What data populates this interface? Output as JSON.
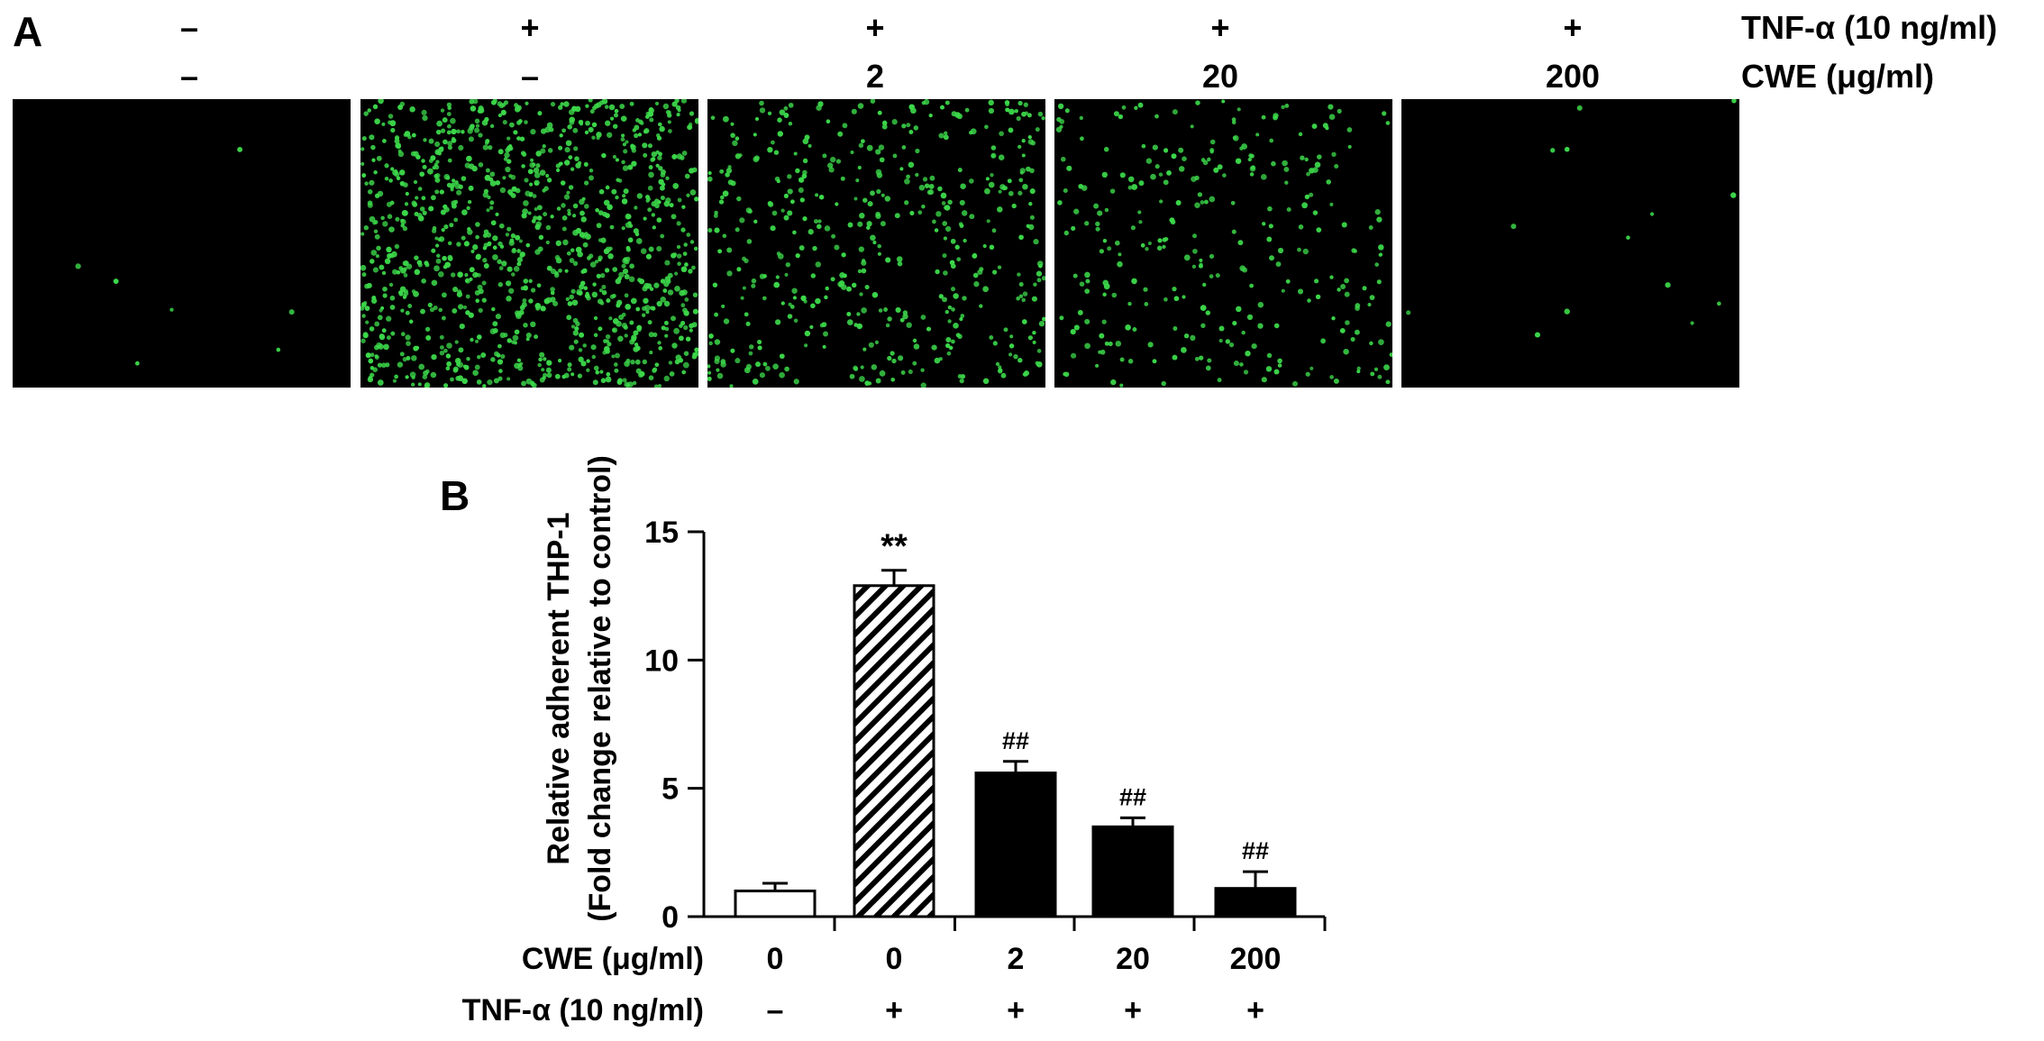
{
  "panel_a": {
    "letter": "A",
    "tnf_label": "TNF-α (10 ng/ml)",
    "cwe_label": "CWE (μg/ml)",
    "conditions": [
      {
        "tnf": "–",
        "cwe": "–",
        "cell_count": 7
      },
      {
        "tnf": "+",
        "cwe": "–",
        "cell_count": 1100
      },
      {
        "tnf": "+",
        "cwe": "2",
        "cell_count": 480
      },
      {
        "tnf": "+",
        "cwe": "20",
        "cell_count": 300
      },
      {
        "tnf": "+",
        "cwe": "200",
        "cell_count": 14
      }
    ],
    "cell_color": "#3cd84a"
  },
  "chart_data": {
    "panel_letter": "B",
    "type": "bar",
    "ylabel_line1": "Relative adherent THP-1",
    "ylabel_line2": "(Fold change relative to control)",
    "ylim": [
      0,
      15
    ],
    "yticks": [
      0,
      5,
      10,
      15
    ],
    "cwe_row_label": "CWE (μg/ml)",
    "tnf_row_label": "TNF-α (10 ng/ml)",
    "cwe_values": [
      "0",
      "0",
      "2",
      "20",
      "200"
    ],
    "tnf_values": [
      "–",
      "+",
      "+",
      "+",
      "+"
    ],
    "values": [
      1.0,
      12.9,
      5.6,
      3.5,
      1.1
    ],
    "errors": [
      0.3,
      0.6,
      0.45,
      0.35,
      0.65
    ],
    "fills": [
      "white",
      "hatched",
      "black",
      "black",
      "black"
    ],
    "annotations": [
      "",
      "**",
      "##",
      "##",
      "##"
    ]
  }
}
